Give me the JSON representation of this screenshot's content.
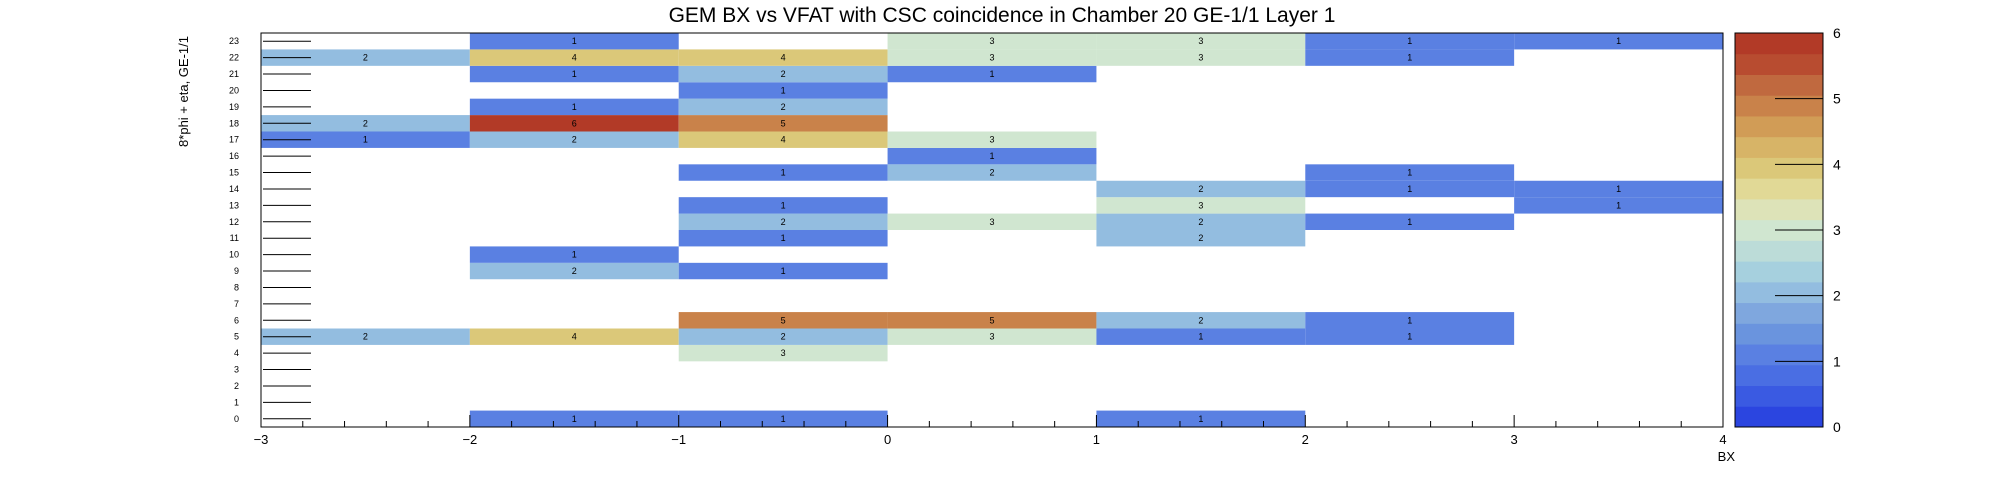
{
  "chart_data": {
    "type": "heatmap",
    "title": "GEM BX vs VFAT with CSC coincidence in Chamber 20 GE-1/1 Layer 1",
    "xlabel": "BX",
    "ylabel": "8*phi + eta, GE-1/1",
    "xlim": [
      -3,
      4
    ],
    "ylim": [
      0,
      23
    ],
    "zlim": [
      0,
      6
    ],
    "x_ticks": [
      "−3",
      "−2",
      "−1",
      "0",
      "1",
      "2",
      "3",
      "4"
    ],
    "y_ticks": [
      "0",
      "1",
      "2",
      "3",
      "4",
      "5",
      "6",
      "7",
      "8",
      "9",
      "10",
      "11",
      "12",
      "13",
      "14",
      "15",
      "16",
      "17",
      "18",
      "19",
      "20",
      "21",
      "22",
      "23"
    ],
    "z_ticks": [
      "0",
      "1",
      "2",
      "3",
      "4",
      "5",
      "6"
    ],
    "cells": [
      {
        "x": -1.5,
        "y": 0,
        "value": 1,
        "label": "1"
      },
      {
        "x": -0.5,
        "y": 0,
        "value": 1,
        "label": "1"
      },
      {
        "x": 1.5,
        "y": 0,
        "value": 1,
        "label": "1"
      },
      {
        "x": -0.5,
        "y": 4,
        "value": 3,
        "label": "3"
      },
      {
        "x": -2.5,
        "y": 5,
        "value": 2,
        "label": "2"
      },
      {
        "x": -1.5,
        "y": 5,
        "value": 4,
        "label": "4"
      },
      {
        "x": -0.5,
        "y": 5,
        "value": 2,
        "label": "2"
      },
      {
        "x": 0.5,
        "y": 5,
        "value": 3,
        "label": "3"
      },
      {
        "x": 1.5,
        "y": 5,
        "value": 1,
        "label": "1"
      },
      {
        "x": 2.5,
        "y": 5,
        "value": 1,
        "label": "1"
      },
      {
        "x": -0.5,
        "y": 6,
        "value": 5,
        "label": "5"
      },
      {
        "x": 0.5,
        "y": 6,
        "value": 5,
        "label": "5"
      },
      {
        "x": 1.5,
        "y": 6,
        "value": 2,
        "label": "2"
      },
      {
        "x": 2.5,
        "y": 6,
        "value": 1,
        "label": "1"
      },
      {
        "x": -1.5,
        "y": 9,
        "value": 2,
        "label": "2"
      },
      {
        "x": -0.5,
        "y": 9,
        "value": 1,
        "label": "1"
      },
      {
        "x": -1.5,
        "y": 10,
        "value": 1,
        "label": "1"
      },
      {
        "x": -0.5,
        "y": 11,
        "value": 1,
        "label": "1"
      },
      {
        "x": 1.5,
        "y": 11,
        "value": 2,
        "label": "2"
      },
      {
        "x": -0.5,
        "y": 12,
        "value": 2,
        "label": "2"
      },
      {
        "x": 0.5,
        "y": 12,
        "value": 3,
        "label": "3"
      },
      {
        "x": 1.5,
        "y": 12,
        "value": 2,
        "label": "2"
      },
      {
        "x": 2.5,
        "y": 12,
        "value": 1,
        "label": "1"
      },
      {
        "x": -0.5,
        "y": 13,
        "value": 1,
        "label": "1"
      },
      {
        "x": 1.5,
        "y": 13,
        "value": 3,
        "label": "3"
      },
      {
        "x": 3.5,
        "y": 13,
        "value": 1,
        "label": "1"
      },
      {
        "x": 1.5,
        "y": 14,
        "value": 2,
        "label": "2"
      },
      {
        "x": 2.5,
        "y": 14,
        "value": 1,
        "label": "1"
      },
      {
        "x": 3.5,
        "y": 14,
        "value": 1,
        "label": "1"
      },
      {
        "x": -0.5,
        "y": 15,
        "value": 1,
        "label": "1"
      },
      {
        "x": 0.5,
        "y": 15,
        "value": 2,
        "label": "2"
      },
      {
        "x": 2.5,
        "y": 15,
        "value": 1,
        "label": "1"
      },
      {
        "x": 0.5,
        "y": 16,
        "value": 1,
        "label": "1"
      },
      {
        "x": -2.5,
        "y": 17,
        "value": 1,
        "label": "1"
      },
      {
        "x": -1.5,
        "y": 17,
        "value": 2,
        "label": "2"
      },
      {
        "x": -0.5,
        "y": 17,
        "value": 4,
        "label": "4"
      },
      {
        "x": 0.5,
        "y": 17,
        "value": 3,
        "label": "3"
      },
      {
        "x": -2.5,
        "y": 18,
        "value": 2,
        "label": "2"
      },
      {
        "x": -1.5,
        "y": 18,
        "value": 6,
        "label": "6"
      },
      {
        "x": -0.5,
        "y": 18,
        "value": 5,
        "label": "5"
      },
      {
        "x": -1.5,
        "y": 19,
        "value": 1,
        "label": "1"
      },
      {
        "x": -0.5,
        "y": 19,
        "value": 2,
        "label": "2"
      },
      {
        "x": -0.5,
        "y": 20,
        "value": 1,
        "label": "1"
      },
      {
        "x": -1.5,
        "y": 21,
        "value": 1,
        "label": "1"
      },
      {
        "x": -0.5,
        "y": 21,
        "value": 2,
        "label": "2"
      },
      {
        "x": 0.5,
        "y": 21,
        "value": 1,
        "label": "1"
      },
      {
        "x": -2.5,
        "y": 22,
        "value": 2,
        "label": "2"
      },
      {
        "x": -1.5,
        "y": 22,
        "value": 4,
        "label": "4"
      },
      {
        "x": -0.5,
        "y": 22,
        "value": 4,
        "label": "4"
      },
      {
        "x": 0.5,
        "y": 22,
        "value": 3,
        "label": "3"
      },
      {
        "x": 1.5,
        "y": 22,
        "value": 3,
        "label": "3"
      },
      {
        "x": 2.5,
        "y": 22,
        "value": 1,
        "label": "1"
      },
      {
        "x": -1.5,
        "y": 23,
        "value": 1,
        "label": "1"
      },
      {
        "x": 0.5,
        "y": 23,
        "value": 3,
        "label": "3"
      },
      {
        "x": 1.5,
        "y": 23,
        "value": 3,
        "label": "3"
      },
      {
        "x": 2.5,
        "y": 23,
        "value": 1,
        "label": "1"
      },
      {
        "x": 3.5,
        "y": 23,
        "value": 1,
        "label": "1"
      }
    ],
    "colors": {
      "palette": [
        "#2b45e0",
        "#3a5ae2",
        "#4a6ee3",
        "#5a80e2",
        "#6a94de",
        "#7fa7de",
        "#93bde0",
        "#a6d0de",
        "#bcdcd8",
        "#d0e6d0",
        "#dde3b8",
        "#e1d996",
        "#dbc879",
        "#d7b467",
        "#d19c56",
        "#c9824a",
        "#c0693f",
        "#b84c30",
        "#b23a27"
      ],
      "frame": "#000000",
      "text": "#000000",
      "background": "#ffffff"
    }
  }
}
